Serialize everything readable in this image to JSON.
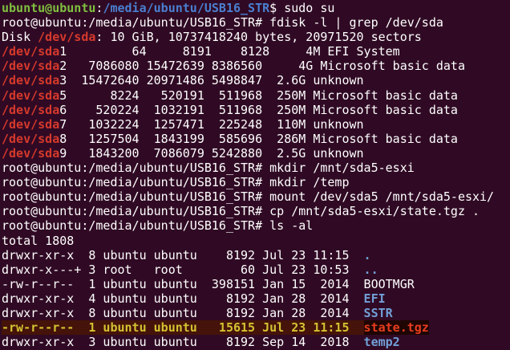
{
  "terminal": {
    "palette": {
      "background": "#300a24",
      "foreground": "#ffffff",
      "green": "#7fbf3f",
      "pathBlue": "#4a7fd0",
      "dirBlue": "#72a0d8",
      "red": "#d6392c",
      "highlightBg": "#451309",
      "highlightFg": "#d3c232",
      "tgzFg": "#e73c1e",
      "tgzBg": "#1f0503"
    },
    "lines": [
      {
        "name": "cmd-sudo-su",
        "segments": [
          {
            "t": "ubuntu@ubuntu",
            "c": "green",
            "b": true,
            "n": "user-host"
          },
          {
            "t": ":",
            "n": "prompt-colon"
          },
          {
            "t": "/media/ubuntu/USB16_STR",
            "c": "pathBlue",
            "b": true,
            "n": "cwd-path"
          },
          {
            "t": "$ sudo su",
            "n": "command-text"
          }
        ]
      },
      {
        "name": "cmd-fdisk-grep",
        "segments": [
          {
            "t": "root@ubuntu:/media/ubuntu/USB16_STR# fdisk -l | grep /dev/sda",
            "n": "command-text"
          }
        ]
      },
      {
        "name": "disk-info",
        "segments": [
          {
            "t": "Disk ",
            "n": "output-text"
          },
          {
            "t": "/dev/sda",
            "c": "red",
            "b": true,
            "n": "grep-match"
          },
          {
            "t": ": 10 GiB, 10737418240 bytes, 20971520 sectors",
            "n": "output-text"
          }
        ]
      },
      {
        "name": "partition-sda1",
        "segments": [
          {
            "t": "/dev/sda",
            "c": "red",
            "b": true,
            "n": "grep-match"
          },
          {
            "t": "1         64     8191    8128     4M EFI System",
            "n": "partition-fields"
          }
        ]
      },
      {
        "name": "partition-sda2",
        "segments": [
          {
            "t": "/dev/sda",
            "c": "red",
            "b": true,
            "n": "grep-match"
          },
          {
            "t": "2   7086080 15472639 8386560     4G Microsoft basic data",
            "n": "partition-fields"
          }
        ]
      },
      {
        "name": "partition-sda3",
        "segments": [
          {
            "t": "/dev/sda",
            "c": "red",
            "b": true,
            "n": "grep-match"
          },
          {
            "t": "3  15472640 20971486 5498847  2.6G unknown",
            "n": "partition-fields"
          }
        ]
      },
      {
        "name": "partition-sda5",
        "segments": [
          {
            "t": "/dev/sda",
            "c": "red",
            "b": true,
            "n": "grep-match"
          },
          {
            "t": "5      8224   520191  511968  250M Microsoft basic data",
            "n": "partition-fields"
          }
        ]
      },
      {
        "name": "partition-sda6",
        "segments": [
          {
            "t": "/dev/sda",
            "c": "red",
            "b": true,
            "n": "grep-match"
          },
          {
            "t": "6    520224  1032191  511968  250M Microsoft basic data",
            "n": "partition-fields"
          }
        ]
      },
      {
        "name": "partition-sda7",
        "segments": [
          {
            "t": "/dev/sda",
            "c": "red",
            "b": true,
            "n": "grep-match"
          },
          {
            "t": "7   1032224  1257471  225248  110M unknown",
            "n": "partition-fields"
          }
        ]
      },
      {
        "name": "partition-sda8",
        "segments": [
          {
            "t": "/dev/sda",
            "c": "red",
            "b": true,
            "n": "grep-match"
          },
          {
            "t": "8   1257504  1843199  585696  286M Microsoft basic data",
            "n": "partition-fields"
          }
        ]
      },
      {
        "name": "partition-sda9",
        "segments": [
          {
            "t": "/dev/sda",
            "c": "red",
            "b": true,
            "n": "grep-match"
          },
          {
            "t": "9   1843200  7086079 5242880  2.5G unknown",
            "n": "partition-fields"
          }
        ]
      },
      {
        "name": "cmd-mkdir-mnt",
        "segments": [
          {
            "t": "root@ubuntu:/media/ubuntu/USB16_STR# mkdir /mnt/sda5-esxi",
            "n": "command-text"
          }
        ]
      },
      {
        "name": "cmd-mkdir-temp",
        "segments": [
          {
            "t": "root@ubuntu:/media/ubuntu/USB16_STR# mkdir /temp",
            "n": "command-text"
          }
        ]
      },
      {
        "name": "cmd-mount",
        "segments": [
          {
            "t": "root@ubuntu:/media/ubuntu/USB16_STR# mount /dev/sda5 /mnt/sda5-esxi/",
            "n": "command-text"
          }
        ]
      },
      {
        "name": "cmd-cp-state-tgz",
        "segments": [
          {
            "t": "root@ubuntu:/media/ubuntu/USB16_STR# cp /mnt/sda5-esxi/state.tgz .",
            "n": "command-text"
          }
        ]
      },
      {
        "name": "cmd-ls-al",
        "segments": [
          {
            "t": "root@ubuntu:/media/ubuntu/USB16_STR# ls -al",
            "n": "command-text"
          }
        ]
      },
      {
        "name": "ls-total",
        "segments": [
          {
            "t": "total 1808",
            "n": "output-text"
          }
        ]
      },
      {
        "name": "ls-row-dot",
        "segments": [
          {
            "t": "drwxr-xr-x  8 ubuntu ubuntu    8192 Jul 23 11:15  ",
            "n": "file-attributes"
          },
          {
            "t": ".",
            "c": "dirBlue",
            "b": true,
            "n": "dir-name"
          }
        ]
      },
      {
        "name": "ls-row-dotdot",
        "segments": [
          {
            "t": "drwxr-x---+ 3 root   root        60 Jul 23 10:53  ",
            "n": "file-attributes"
          },
          {
            "t": "..",
            "c": "dirBlue",
            "b": true,
            "n": "dir-name"
          }
        ]
      },
      {
        "name": "ls-row-bootmgr",
        "segments": [
          {
            "t": "-rw-r--r--  1 ubuntu ubuntu  398151 Jan 15  2014  BOOTMGR",
            "n": "file-attributes"
          }
        ]
      },
      {
        "name": "ls-row-efi",
        "segments": [
          {
            "t": "drwxr-xr-x  4 ubuntu ubuntu    8192 Jan 28  2014  ",
            "n": "file-attributes"
          },
          {
            "t": "EFI",
            "c": "dirBlue",
            "b": true,
            "n": "dir-name"
          }
        ]
      },
      {
        "name": "ls-row-sstr",
        "segments": [
          {
            "t": "drwxr-xr-x  8 ubuntu ubuntu    8192 Jan 28  2014  ",
            "n": "file-attributes"
          },
          {
            "t": "SSTR",
            "c": "dirBlue",
            "b": true,
            "n": "dir-name"
          }
        ]
      },
      {
        "name": "ls-row-state-tgz-highlighted",
        "segments": [
          {
            "t": "-rw-r--r--  1 ubuntu ubuntu   15615 Jul 23 11:15  ",
            "c": "highlightFg",
            "bg": "highlightBg",
            "b": true,
            "n": "file-attributes-highlighted"
          },
          {
            "t": "state.tgz",
            "c": "tgzFg",
            "bg": "tgzBg",
            "b": true,
            "n": "archive-file-name"
          }
        ]
      },
      {
        "name": "ls-row-temp2",
        "segments": [
          {
            "t": "drwxr-xr-x  3 ubuntu ubuntu    8192 Sep 14  2018  ",
            "n": "file-attributes"
          },
          {
            "t": "temp2",
            "c": "dirBlue",
            "b": true,
            "n": "dir-name"
          }
        ]
      }
    ]
  }
}
